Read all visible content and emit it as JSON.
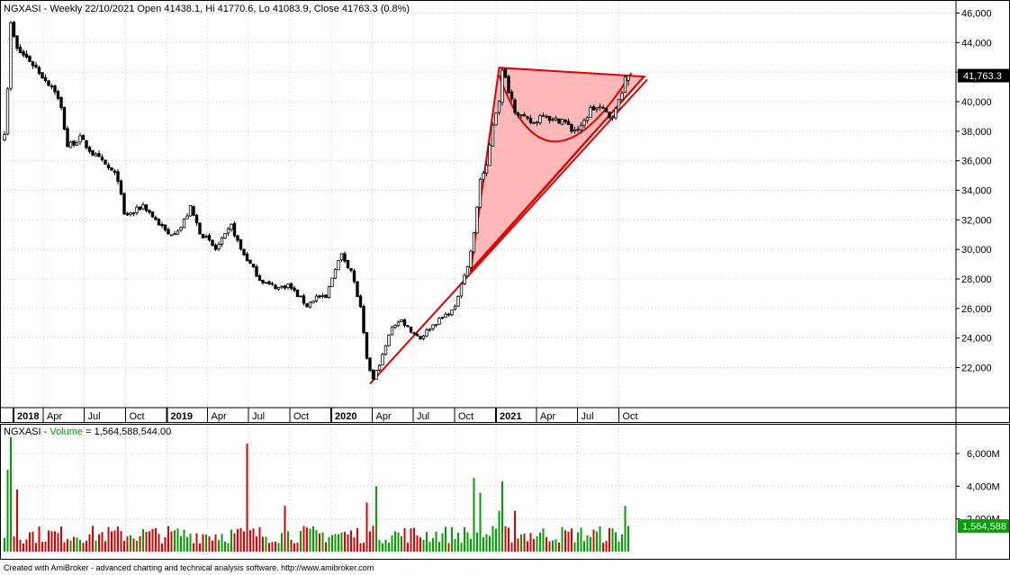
{
  "price_panel": {
    "header": "NGXASI - Weekly 22/10/2021 Open 41438.1, Hi 41770.6, Lo 41083.9, Close 41763.3 (0.8%)",
    "last_value_badge": "41,763.3",
    "y_ticks": [
      "46,000",
      "44,000",
      "42,000",
      "40,000",
      "38,000",
      "36,000",
      "34,000",
      "32,000",
      "30,000",
      "28,000",
      "26,000",
      "24,000",
      "22,000"
    ]
  },
  "x_axis": {
    "labels": [
      {
        "text": "2018",
        "bold": true
      },
      {
        "text": "Apr",
        "bold": false
      },
      {
        "text": "Jul",
        "bold": false
      },
      {
        "text": "Oct",
        "bold": false
      },
      {
        "text": "2019",
        "bold": true
      },
      {
        "text": "Apr",
        "bold": false
      },
      {
        "text": "Jul",
        "bold": false
      },
      {
        "text": "Oct",
        "bold": false
      },
      {
        "text": "2020",
        "bold": true
      },
      {
        "text": "Apr",
        "bold": false
      },
      {
        "text": "Jul",
        "bold": false
      },
      {
        "text": "Oct",
        "bold": false
      },
      {
        "text": "2021",
        "bold": true
      },
      {
        "text": "Apr",
        "bold": false
      },
      {
        "text": "Jul",
        "bold": false
      },
      {
        "text": "Oct",
        "bold": false
      }
    ]
  },
  "volume_panel": {
    "title_prefix": "NGXASI - ",
    "title_series": "Volume",
    "title_value": " = 1,564,588,544.00",
    "y_ticks": [
      "6,000M",
      "4,000M",
      "2,000M"
    ],
    "last_value_badge": "1,564,588"
  },
  "footer": "Created with AmiBroker - advanced charting and technical analysis software. http://www.amibroker.com",
  "colors": {
    "up_volume": "#00a000",
    "down_volume": "#e00000",
    "badge_bg": "#00a000",
    "pattern_fill": "#ffb8b8",
    "pattern_line": "#e00000",
    "grid": "#c8c8c8"
  },
  "chart_data": {
    "type": "candlestick",
    "symbol": "NGXASI",
    "interval": "Weekly",
    "ylim": [
      20500,
      46500
    ],
    "close_anchors": [
      [
        "2018-01-05",
        38000
      ],
      [
        "2018-01-12",
        41000
      ],
      [
        "2018-01-19",
        45200
      ],
      [
        "2018-02-02",
        43500
      ],
      [
        "2018-03-02",
        42800
      ],
      [
        "2018-04-06",
        41500
      ],
      [
        "2018-04-27",
        40800
      ],
      [
        "2018-05-11",
        39500
      ],
      [
        "2018-05-25",
        37000
      ],
      [
        "2018-06-22",
        37500
      ],
      [
        "2018-07-20",
        36500
      ],
      [
        "2018-08-24",
        35500
      ],
      [
        "2018-09-14",
        34800
      ],
      [
        "2018-09-28",
        32300
      ],
      [
        "2018-10-19",
        32500
      ],
      [
        "2018-11-09",
        33000
      ],
      [
        "2018-12-07",
        32000
      ],
      [
        "2019-01-04",
        31000
      ],
      [
        "2019-02-01",
        31500
      ],
      [
        "2019-02-22",
        32800
      ],
      [
        "2019-03-15",
        31200
      ],
      [
        "2019-04-05",
        30500
      ],
      [
        "2019-04-19",
        30000
      ],
      [
        "2019-05-10",
        30900
      ],
      [
        "2019-05-24",
        31600
      ],
      [
        "2019-06-14",
        30000
      ],
      [
        "2019-07-05",
        29000
      ],
      [
        "2019-07-26",
        28000
      ],
      [
        "2019-08-16",
        27600
      ],
      [
        "2019-09-06",
        27400
      ],
      [
        "2019-09-27",
        27600
      ],
      [
        "2019-10-18",
        26900
      ],
      [
        "2019-11-08",
        26200
      ],
      [
        "2019-11-29",
        26800
      ],
      [
        "2019-12-20",
        26700
      ],
      [
        "2020-01-10",
        28800
      ],
      [
        "2020-01-24",
        29600
      ],
      [
        "2020-02-14",
        28600
      ],
      [
        "2020-03-06",
        26000
      ],
      [
        "2020-03-20",
        22500
      ],
      [
        "2020-04-03",
        21200
      ],
      [
        "2020-04-24",
        22800
      ],
      [
        "2020-05-15",
        24800
      ],
      [
        "2020-06-05",
        25200
      ],
      [
        "2020-06-26",
        24500
      ],
      [
        "2020-07-17",
        24000
      ],
      [
        "2020-08-07",
        24700
      ],
      [
        "2020-09-04",
        25400
      ],
      [
        "2020-10-02",
        26000
      ],
      [
        "2020-10-16",
        27800
      ],
      [
        "2020-10-30",
        28800
      ],
      [
        "2020-11-13",
        31000
      ],
      [
        "2020-11-27",
        34800
      ],
      [
        "2020-12-11",
        35500
      ],
      [
        "2020-12-24",
        38500
      ],
      [
        "2021-01-08",
        40200
      ],
      [
        "2021-01-15",
        42000
      ],
      [
        "2021-01-22",
        41500
      ],
      [
        "2021-02-12",
        39500
      ],
      [
        "2021-03-05",
        38800
      ],
      [
        "2021-03-26",
        38500
      ],
      [
        "2021-04-16",
        39300
      ],
      [
        "2021-05-07",
        38700
      ],
      [
        "2021-05-28",
        38800
      ],
      [
        "2021-06-18",
        38100
      ],
      [
        "2021-07-09",
        38200
      ],
      [
        "2021-07-30",
        39500
      ],
      [
        "2021-08-20",
        39600
      ],
      [
        "2021-09-10",
        39000
      ],
      [
        "2021-09-24",
        39400
      ],
      [
        "2021-10-08",
        40800
      ],
      [
        "2021-10-15",
        41450
      ],
      [
        "2021-10-22",
        41763.3
      ]
    ],
    "last_bar": {
      "date": "2021-10-22",
      "open": 41438.1,
      "high": 41770.6,
      "low": 41083.9,
      "close": 41763.3,
      "change_pct": 0.8,
      "volume": 1564588544
    },
    "volume_ylim_millions": [
      0,
      7500
    ],
    "volume_spikes_millions": [
      [
        "2018-01-12",
        5000
      ],
      [
        "2018-01-19",
        7000
      ],
      [
        "2018-02-02",
        3800
      ],
      [
        "2019-06-28",
        6600
      ],
      [
        "2019-09-20",
        2800
      ],
      [
        "2020-03-20",
        3000
      ],
      [
        "2020-04-10",
        4000
      ],
      [
        "2020-11-13",
        4500
      ],
      [
        "2020-11-27",
        3600
      ],
      [
        "2021-01-08",
        2500
      ],
      [
        "2021-01-15",
        4300
      ],
      [
        "2021-02-12",
        2500
      ],
      [
        "2021-10-15",
        2800
      ],
      [
        "2021-10-22",
        1564.6
      ]
    ],
    "overlays": [
      {
        "type": "triangle",
        "fill": "#ffb8b8",
        "points": [
          [
            "2020-11-06",
            28600
          ],
          [
            "2021-01-08",
            42300
          ],
          [
            "2021-11-26",
            41700
          ]
        ]
      },
      {
        "type": "trendline",
        "points": [
          [
            "2020-03-27",
            20900
          ],
          [
            "2021-12-03",
            41500
          ]
        ]
      },
      {
        "type": "trendline",
        "points": [
          [
            "2020-11-06",
            28500
          ],
          [
            "2021-11-26",
            41700
          ]
        ]
      },
      {
        "type": "arc",
        "points": [
          [
            "2021-01-08",
            41800
          ],
          [
            "2021-05-14",
            37300
          ],
          [
            "2021-10-29",
            41950
          ]
        ]
      }
    ]
  }
}
